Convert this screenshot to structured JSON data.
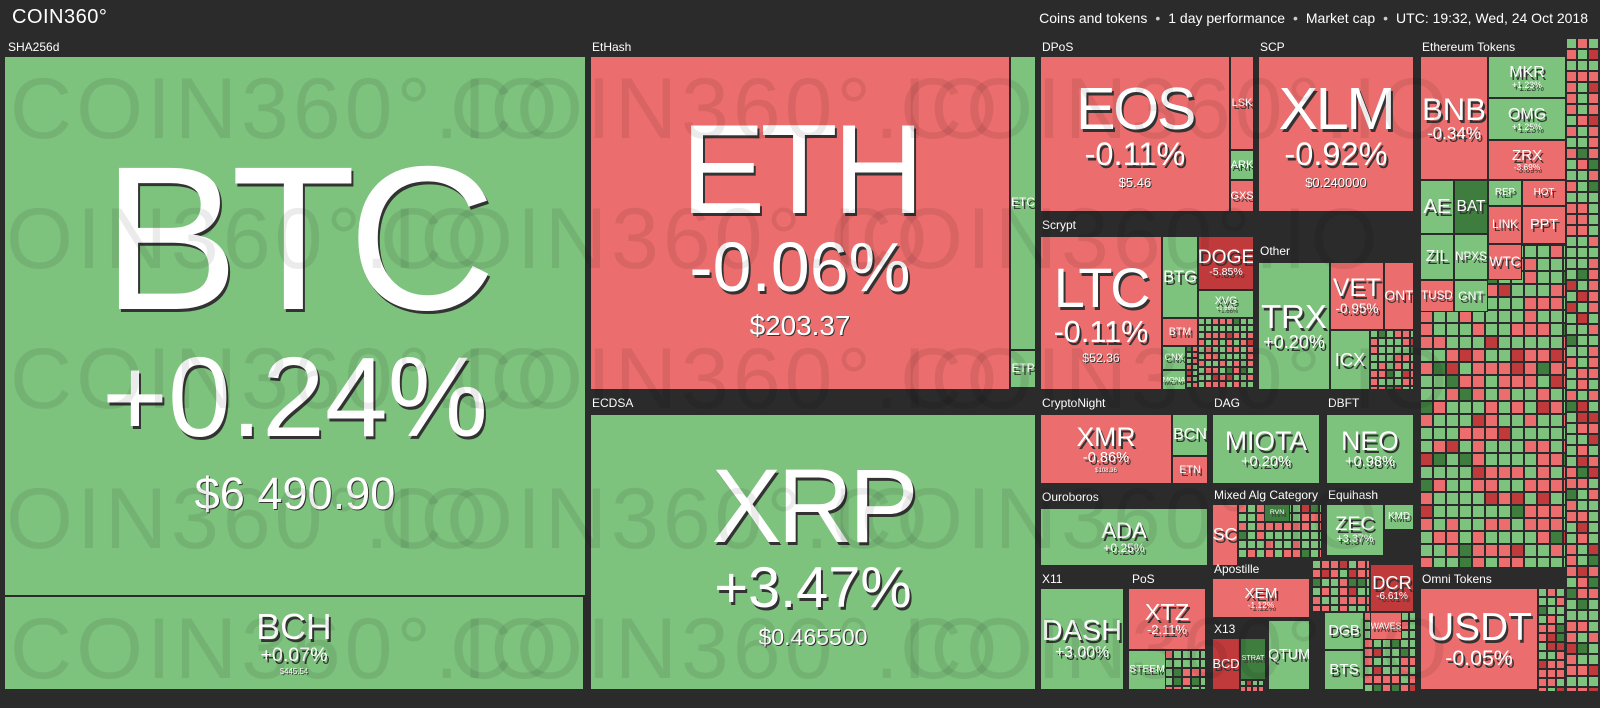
{
  "header": {
    "logo": "COIN360°",
    "filters": [
      "Coins and tokens",
      "1 day performance",
      "Market cap",
      "UTC: 19:32, Wed, 24 Oct 2018"
    ]
  },
  "watermark": "COIN360°.IO",
  "groups": [
    {
      "label": "SHA256d",
      "tiles": [
        {
          "name": "BTC",
          "change": "+0.24%",
          "price": "$6 490.90"
        },
        {
          "name": "BCH",
          "change": "+0.07%",
          "price": "$445.54"
        }
      ]
    },
    {
      "label": "EtHash",
      "tiles": [
        {
          "name": "ETH",
          "change": "-0.06%",
          "price": "$203.37"
        },
        {
          "name": "ETC"
        },
        {
          "name": "ETP"
        }
      ]
    },
    {
      "label": "ECDSA",
      "tiles": [
        {
          "name": "XRP",
          "change": "+3.47%",
          "price": "$0.465500"
        }
      ]
    },
    {
      "label": "DPoS",
      "tiles": [
        {
          "name": "EOS",
          "change": "-0.11%",
          "price": "$5.46"
        },
        {
          "name": "LSK"
        },
        {
          "name": "ARK"
        },
        {
          "name": "GXS"
        }
      ]
    },
    {
      "label": "SCP",
      "tiles": [
        {
          "name": "XLM",
          "change": "-0.92%",
          "price": "$0.240000"
        }
      ]
    },
    {
      "label": "Ethereum Tokens",
      "tiles": [
        {
          "name": "BNB",
          "change": "-0.34%"
        },
        {
          "name": "MKR",
          "change": "+1.23%"
        },
        {
          "name": "OMG",
          "change": "+1.25%"
        },
        {
          "name": "ZRX",
          "change": "-3.69%"
        },
        {
          "name": "AE"
        },
        {
          "name": "BAT"
        },
        {
          "name": "REP"
        },
        {
          "name": "HOT"
        },
        {
          "name": "ZIL"
        },
        {
          "name": "NPXS"
        },
        {
          "name": "LINK"
        },
        {
          "name": "PPT"
        },
        {
          "name": "TUSD"
        },
        {
          "name": "GNT"
        },
        {
          "name": "WTC"
        }
      ]
    },
    {
      "label": "Scrypt",
      "tiles": [
        {
          "name": "LTC",
          "change": "-0.11%",
          "price": "$52.36"
        },
        {
          "name": "BTG"
        },
        {
          "name": "DOGE",
          "change": "-5.85%"
        },
        {
          "name": "XVG",
          "change": "+1.66%"
        },
        {
          "name": "BTM"
        },
        {
          "name": "CNX"
        },
        {
          "name": "MONA"
        }
      ]
    },
    {
      "label": "Other",
      "tiles": [
        {
          "name": "TRX",
          "change": "+0.20%"
        },
        {
          "name": "VET",
          "change": "-0.95%"
        },
        {
          "name": "ONT"
        },
        {
          "name": "ICX"
        }
      ]
    },
    {
      "label": "CryptoNight",
      "tiles": [
        {
          "name": "XMR",
          "change": "-0.86%",
          "price": "$108.36"
        },
        {
          "name": "BCN"
        },
        {
          "name": "ETN"
        }
      ]
    },
    {
      "label": "DAG",
      "tiles": [
        {
          "name": "MIOTA",
          "change": "+0.20%"
        }
      ]
    },
    {
      "label": "DBFT",
      "tiles": [
        {
          "name": "NEO",
          "change": "+0.98%"
        }
      ]
    },
    {
      "label": "Ouroboros",
      "tiles": [
        {
          "name": "ADA",
          "change": "+0.25%"
        }
      ]
    },
    {
      "label": "Mixed Alg Category",
      "tiles": [
        {
          "name": "SC"
        },
        {
          "name": "RVN"
        }
      ]
    },
    {
      "label": "Equihash",
      "tiles": [
        {
          "name": "ZEC",
          "change": "+3.37%"
        },
        {
          "name": "KMD"
        }
      ]
    },
    {
      "label": "Apostille",
      "tiles": [
        {
          "name": "XEM",
          "change": "-1.12%"
        }
      ]
    },
    {
      "label": "X11",
      "tiles": [
        {
          "name": "DASH",
          "change": "+3.00%"
        }
      ]
    },
    {
      "label": "PoS",
      "tiles": [
        {
          "name": "XTZ",
          "change": "-2.11%"
        },
        {
          "name": "STEEM"
        }
      ]
    },
    {
      "label": "X13",
      "tiles": [
        {
          "name": "BCD"
        },
        {
          "name": "STRAT"
        },
        {
          "name": "QTUM"
        }
      ]
    },
    {
      "label": "Omni Tokens",
      "tiles": [
        {
          "name": "USDT",
          "change": "-0.05%"
        }
      ]
    }
  ],
  "misc_tiles": [
    {
      "name": "DCR",
      "change": "-6.61%"
    },
    {
      "name": "DGB"
    },
    {
      "name": "BTS"
    },
    {
      "name": "WAVES"
    }
  ]
}
